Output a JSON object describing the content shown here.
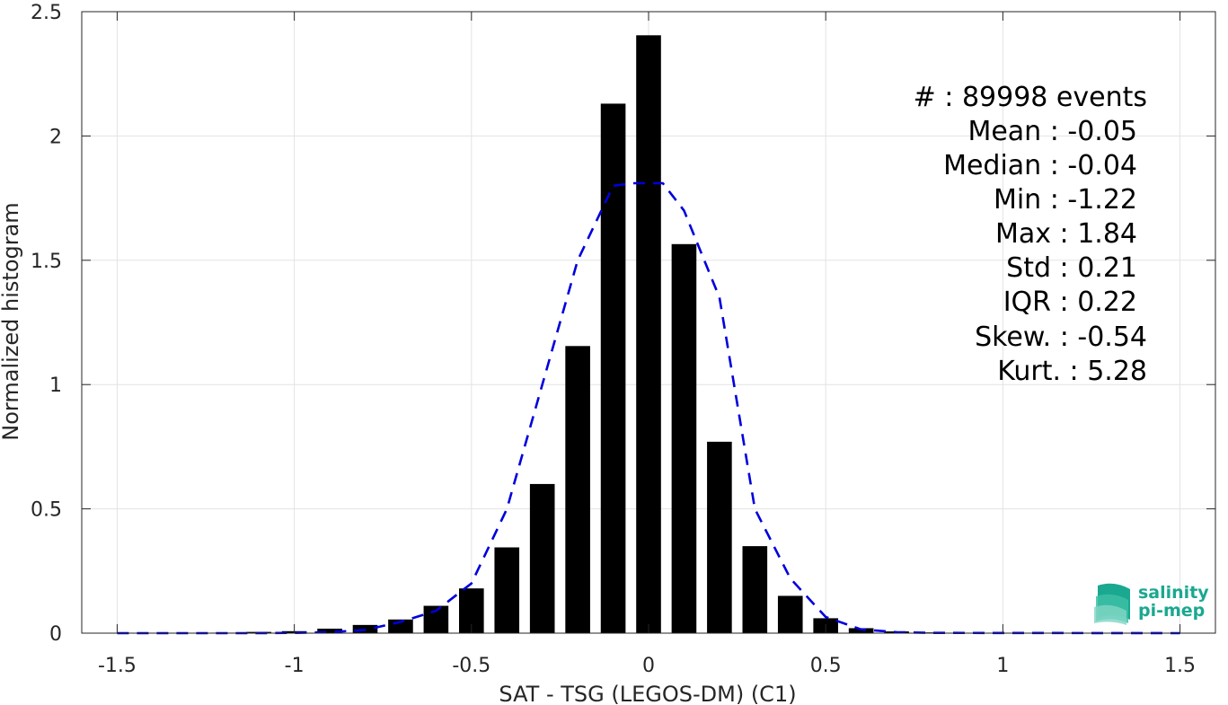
{
  "chart_data": {
    "type": "bar",
    "xlabel": "SAT - TSG (LEGOS-DM) (C1)",
    "ylabel": "Normalized histogram",
    "xlim": [
      -1.6,
      1.6
    ],
    "ylim": [
      0,
      2.5
    ],
    "x_ticks": [
      -1.5,
      -1,
      -0.5,
      0,
      0.5,
      1,
      1.5
    ],
    "x_tick_labels": [
      "-1.5",
      "-1",
      "-0.5",
      "0",
      "0.5",
      "1",
      "1.5"
    ],
    "y_ticks": [
      0,
      0.5,
      1,
      1.5,
      2,
      2.5
    ],
    "y_tick_labels": [
      "0",
      "0.5",
      "1",
      "1.5",
      "2",
      "2.5"
    ],
    "grid": true,
    "bar_width": 0.07,
    "series": [
      {
        "type": "bar",
        "color": "#000000",
        "x": [
          -1.5,
          -1.4,
          -1.3,
          -1.2,
          -1.1,
          -1.0,
          -0.9,
          -0.8,
          -0.7,
          -0.6,
          -0.5,
          -0.4,
          -0.3,
          -0.2,
          -0.1,
          0.0,
          0.1,
          0.2,
          0.3,
          0.4,
          0.5,
          0.6,
          0.7,
          0.8,
          0.9,
          1.0,
          1.1,
          1.2,
          1.3,
          1.4,
          1.5
        ],
        "values": [
          0,
          0,
          0,
          0.002,
          0.005,
          0.008,
          0.018,
          0.033,
          0.055,
          0.11,
          0.18,
          0.345,
          0.6,
          1.155,
          2.13,
          2.405,
          1.565,
          0.77,
          0.35,
          0.15,
          0.06,
          0.02,
          0.007,
          0.003,
          0.001,
          0,
          0,
          0,
          0,
          0,
          0
        ]
      },
      {
        "type": "line",
        "style": "dashed",
        "color": "#0000dd",
        "x": [
          -1.5,
          -1.1,
          -1.0,
          -0.9,
          -0.8,
          -0.7,
          -0.6,
          -0.5,
          -0.4,
          -0.3,
          -0.2,
          -0.1,
          -0.04,
          0.0,
          0.04,
          0.1,
          0.2,
          0.3,
          0.4,
          0.5,
          0.6,
          0.7,
          0.8,
          1.5
        ],
        "values": [
          0,
          0,
          0.001,
          0.004,
          0.013,
          0.045,
          0.09,
          0.2,
          0.5,
          1.0,
          1.5,
          1.8,
          1.81,
          1.81,
          1.81,
          1.7,
          1.35,
          0.5,
          0.22,
          0.065,
          0.015,
          0.004,
          0.001,
          0
        ]
      }
    ]
  },
  "stats": {
    "events": "#  : 89998 events",
    "mean": "Mean : -0.05",
    "median": "Median : -0.04",
    "min": "Min : -1.22",
    "max": "Max : 1.84",
    "std": "Std : 0.21",
    "iqr": "IQR : 0.22",
    "skew": "Skew. : -0.54",
    "kurt": "Kurt. : 5.28"
  },
  "logo": {
    "line1": "salinity",
    "line2": "pi-mep",
    "color": "#1aa890"
  }
}
